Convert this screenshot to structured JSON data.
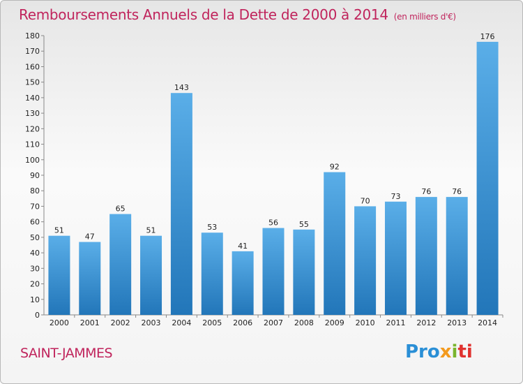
{
  "title": "Remboursements Annuels de la Dette de 2000 à 2014",
  "subtitle": "(en milliers d'€)",
  "commune": "SAINT-JAMMES",
  "logo": [
    "Pro",
    "x",
    "i",
    "ti"
  ],
  "colors": {
    "bar_top": "#5aaee8",
    "bar_bottom": "#2276b9",
    "title": "#c0245c"
  },
  "chart_data": {
    "type": "bar",
    "title": "Remboursements Annuels de la Dette de 2000 à 2014",
    "subtitle": "(en milliers d'€)",
    "categories": [
      "2000",
      "2001",
      "2002",
      "2003",
      "2004",
      "2005",
      "2006",
      "2007",
      "2008",
      "2009",
      "2010",
      "2011",
      "2012",
      "2013",
      "2014"
    ],
    "values": [
      51,
      47,
      65,
      51,
      143,
      53,
      41,
      56,
      55,
      92,
      70,
      73,
      76,
      76,
      176
    ],
    "ylim": [
      0,
      180
    ],
    "yticks": [
      0,
      10,
      20,
      30,
      40,
      50,
      60,
      70,
      80,
      90,
      100,
      110,
      120,
      130,
      140,
      150,
      160,
      170,
      180
    ],
    "grid": false,
    "legend": "none"
  }
}
